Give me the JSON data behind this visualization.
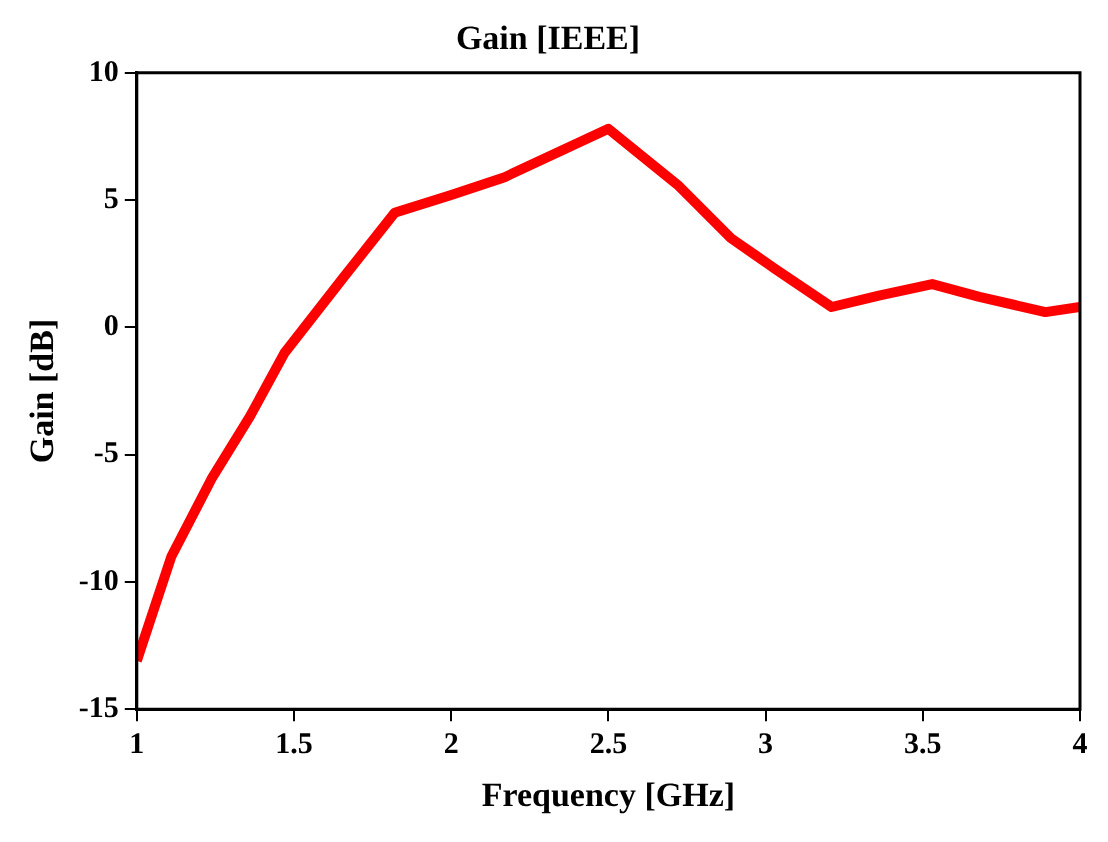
{
  "chart_data": {
    "type": "line",
    "title": "Gain [IEEE]",
    "xlabel": "Frequency [GHz]",
    "ylabel": "Gain [dB]",
    "xlim": [
      1,
      4
    ],
    "xticks": [
      1,
      1.5,
      2,
      2.5,
      3,
      3.5,
      4
    ],
    "ylim": [
      -15,
      10
    ],
    "yticks": [
      -15,
      -10,
      -5,
      0,
      5,
      10
    ],
    "grid": false,
    "legend": false,
    "marker": "none",
    "line_style": "solid",
    "series": [
      {
        "color": "#ff0000",
        "x": [
          1,
          1.11,
          1.24,
          1.36,
          1.47,
          1.66,
          1.82,
          2.0,
          2.17,
          2.5,
          2.72,
          2.89,
          3.03,
          3.21,
          3.36,
          3.53,
          3.68,
          3.89,
          4.0
        ],
        "values": [
          -13.1,
          -9.0,
          -5.9,
          -3.5,
          -1.0,
          2.0,
          4.5,
          5.2,
          5.9,
          7.8,
          5.6,
          3.5,
          2.3,
          0.8,
          1.25,
          1.7,
          1.2,
          0.6,
          0.8
        ]
      }
    ]
  }
}
